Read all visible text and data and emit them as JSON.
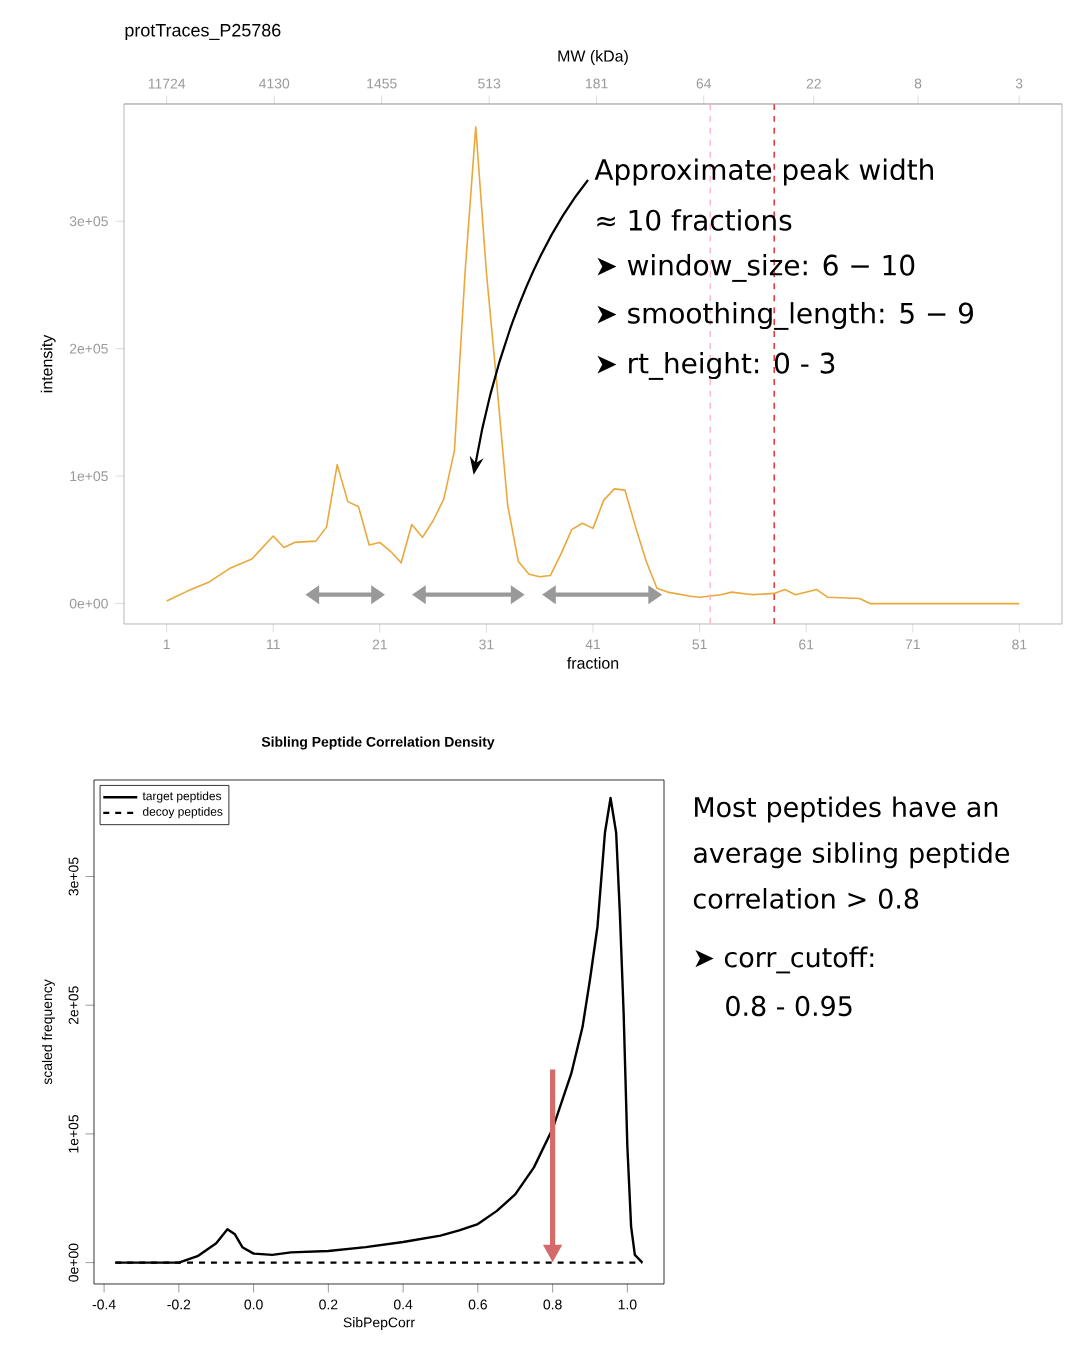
{
  "chart_data": [
    {
      "type": "line",
      "title": "protTraces_P25786",
      "xlabel": "fraction",
      "ylabel": "intensity",
      "x2label": "MW (kDa)",
      "xlim": [
        -3,
        85
      ],
      "ylim": [
        -16000,
        392000
      ],
      "xticks": [
        1,
        11,
        21,
        31,
        41,
        51,
        61,
        71,
        81
      ],
      "yticks": [
        {
          "value": 0,
          "label": "0e+00"
        },
        {
          "value": 100000,
          "label": "1e+05"
        },
        {
          "value": 200000,
          "label": "2e+05"
        },
        {
          "value": 300000,
          "label": "3e+05"
        }
      ],
      "x2lim": [
        17740,
        1.98
      ],
      "log": "x2",
      "x2ticks": [
        11724,
        4130,
        1455,
        513,
        181,
        64,
        22,
        8,
        3
      ],
      "series": [
        {
          "color": "#eba83a",
          "x": [
            1,
            3,
            5,
            7,
            9,
            11,
            12,
            13,
            15,
            16,
            17,
            18,
            19,
            20,
            21,
            22,
            23,
            24,
            25,
            26,
            27,
            28,
            29,
            30,
            31,
            32,
            33,
            34,
            35,
            36,
            37,
            38,
            39,
            40,
            41,
            42,
            43,
            44,
            45,
            46,
            47,
            48,
            50,
            51,
            53,
            54,
            56,
            58,
            59,
            60,
            62,
            63,
            66,
            67,
            81
          ],
          "values": [
            2000,
            10000,
            17000,
            28000,
            35000,
            53000,
            44000,
            48000,
            49000,
            60000,
            109000,
            80000,
            76000,
            46000,
            48000,
            41000,
            32000,
            62000,
            52000,
            65000,
            82000,
            120000,
            260000,
            374000,
            260000,
            170000,
            77000,
            33000,
            23000,
            21000,
            22000,
            39000,
            58000,
            63000,
            59000,
            81000,
            90000,
            89000,
            60000,
            33000,
            12000,
            9000,
            6000,
            5000,
            7000,
            9000,
            7000,
            8000,
            11000,
            7000,
            11000,
            5000,
            4000,
            0,
            0
          ]
        }
      ],
      "ref_lines": [
        {
          "axis": "x",
          "value": 52,
          "color": "#ffb6c1",
          "line_style": "dashed"
        },
        {
          "axis": "x",
          "value": 58,
          "color": "#e8202a",
          "line_style": "dashed"
        }
      ],
      "annotations": [
        "Approximate peak width",
        "≈ 10 fractions",
        "➤ window_size: 6 − 10",
        "➤ smoothing_length: 5 − 9",
        "➤ rt_height: 0 - 3"
      ]
    },
    {
      "type": "line",
      "title": "Sibling Peptide Correlation Density",
      "xlabel": "SibPepCorr",
      "ylabel": "scaled frequency",
      "xlim": [
        -0.427,
        1.098
      ],
      "ylim": [
        -16600,
        375000
      ],
      "xticks": [
        {
          "value": -0.4,
          "label": "-0.4"
        },
        {
          "value": -0.2,
          "label": "-0.2"
        },
        {
          "value": 0,
          "label": "0.0"
        },
        {
          "value": 0.2,
          "label": "0.2"
        },
        {
          "value": 0.4,
          "label": "0.4"
        },
        {
          "value": 0.6,
          "label": "0.6"
        },
        {
          "value": 0.8,
          "label": "0.8"
        },
        {
          "value": 1,
          "label": "1.0"
        }
      ],
      "yticks": [
        {
          "value": 0,
          "label": "0e+00"
        },
        {
          "value": 100000,
          "label": "1e+05"
        },
        {
          "value": 200000,
          "label": "2e+05"
        },
        {
          "value": 300000,
          "label": "3e+05"
        }
      ],
      "legend": "top left",
      "series": [
        {
          "name": "target peptides",
          "color": "#000000",
          "line_style": "solid",
          "x": [
            -0.37,
            -0.3,
            -0.2,
            -0.15,
            -0.1,
            -0.07,
            -0.05,
            -0.03,
            0,
            0.05,
            0.1,
            0.2,
            0.3,
            0.4,
            0.5,
            0.55,
            0.6,
            0.65,
            0.7,
            0.75,
            0.8,
            0.85,
            0.88,
            0.9,
            0.92,
            0.94,
            0.955,
            0.97,
            0.98,
            0.99,
            1.0,
            1.01,
            1.02,
            1.04
          ],
          "values": [
            0,
            0,
            0,
            5000,
            15000,
            26000,
            22000,
            12000,
            7000,
            6000,
            8000,
            9000,
            12000,
            16000,
            21000,
            25000,
            30000,
            40000,
            53000,
            74000,
            104000,
            147000,
            183000,
            220000,
            261000,
            334000,
            361000,
            334000,
            271000,
            194000,
            90000,
            28000,
            6000,
            0
          ]
        },
        {
          "name": "decoy peptides",
          "color": "#000000",
          "line_style": "dashed",
          "x": [
            -0.37,
            0,
            0.5,
            1.04
          ],
          "values": [
            0,
            0,
            0,
            0
          ]
        }
      ],
      "annotations": [
        "Most peptides have an average sibling peptide correlation > 0.8",
        "➤ corr_cutoff:",
        "0.8 - 0.95"
      ]
    }
  ]
}
